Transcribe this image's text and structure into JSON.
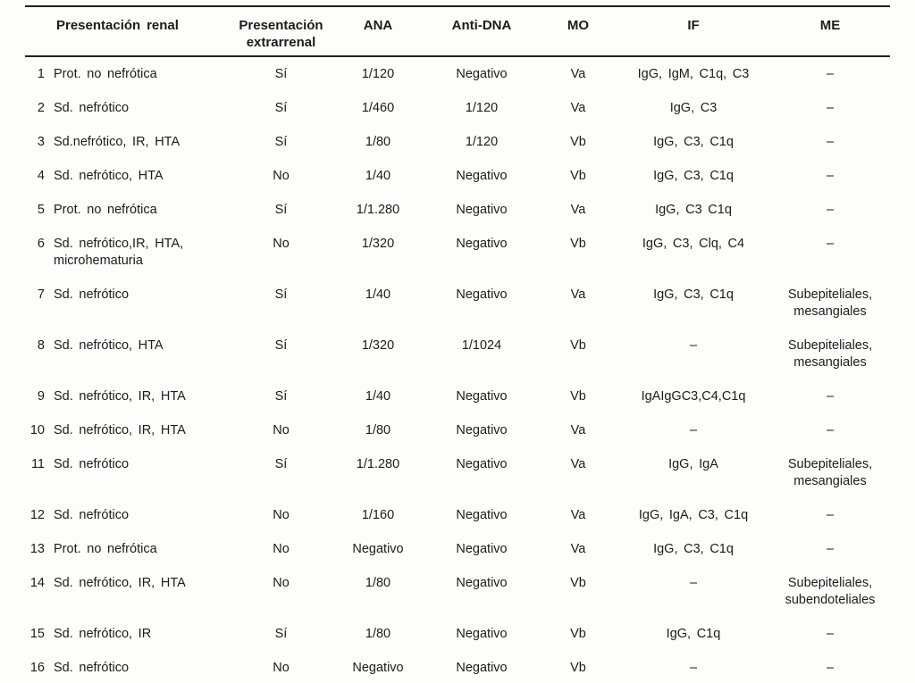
{
  "table": {
    "columns": [
      {
        "key": "num",
        "label": ""
      },
      {
        "key": "renal",
        "label": "Presentación renal"
      },
      {
        "key": "extrarenal",
        "label": "Presentación\nextrarrenal"
      },
      {
        "key": "ana",
        "label": "ANA"
      },
      {
        "key": "antidna",
        "label": "Anti-DNA"
      },
      {
        "key": "mo",
        "label": "MO"
      },
      {
        "key": "if",
        "label": "IF"
      },
      {
        "key": "me",
        "label": "ME"
      }
    ],
    "rows": [
      {
        "num": "1",
        "renal": "Prot. no nefrótica",
        "extrarenal": "Sí",
        "ana": "1/120",
        "antidna": "Negativo",
        "mo": "Va",
        "if": "IgG, IgM, C1q, C3",
        "me": "–"
      },
      {
        "num": "2",
        "renal": "Sd. nefrótico",
        "extrarenal": "Sí",
        "ana": "1/460",
        "antidna": "1/120",
        "mo": "Va",
        "if": "IgG, C3",
        "me": "–"
      },
      {
        "num": "3",
        "renal": "Sd.nefrótico, IR, HTA",
        "extrarenal": "Sí",
        "ana": "1/80",
        "antidna": "1/120",
        "mo": "Vb",
        "if": "IgG, C3, C1q",
        "me": "–"
      },
      {
        "num": "4",
        "renal": "Sd. nefrótico, HTA",
        "extrarenal": "No",
        "ana": "1/40",
        "antidna": "Negativo",
        "mo": "Vb",
        "if": "IgG, C3, C1q",
        "me": "–"
      },
      {
        "num": "5",
        "renal": "Prot. no nefrótica",
        "extrarenal": "Sí",
        "ana": "1/1.280",
        "antidna": "Negativo",
        "mo": "Va",
        "if": "IgG, C3 C1q",
        "me": "–"
      },
      {
        "num": "6",
        "renal": "Sd. nefrótico,IR, HTA,\nmicrohematuria",
        "extrarenal": "No",
        "ana": "1/320",
        "antidna": "Negativo",
        "mo": "Vb",
        "if": "IgG, C3, Clq, C4",
        "me": "–"
      },
      {
        "num": "7",
        "renal": "Sd. nefrótico",
        "extrarenal": "Sí",
        "ana": "1/40",
        "antidna": "Negativo",
        "mo": "Va",
        "if": "IgG, C3, C1q",
        "me": "Subepiteliales,\nmesangiales"
      },
      {
        "num": "8",
        "renal": "Sd. nefrótico, HTA",
        "extrarenal": "Sí",
        "ana": "1/320",
        "antidna": "1/1024",
        "mo": "Vb",
        "if": "–",
        "me": "Subepiteliales,\nmesangiales"
      },
      {
        "num": "9",
        "renal": "Sd. nefrótico, IR, HTA",
        "extrarenal": "Sí",
        "ana": "1/40",
        "antidna": "Negativo",
        "mo": "Vb",
        "if": "IgAIgGC3,C4,C1q",
        "me": "–"
      },
      {
        "num": "10",
        "renal": "Sd. nefrótico, IR, HTA",
        "extrarenal": "No",
        "ana": "1/80",
        "antidna": "Negativo",
        "mo": "Va",
        "if": "–",
        "me": "–"
      },
      {
        "num": "11",
        "renal": "Sd. nefrótico",
        "extrarenal": "Sí",
        "ana": "1/1.280",
        "antidna": "Negativo",
        "mo": "Va",
        "if": "IgG, IgA",
        "me": "Subepiteliales,\nmesangiales"
      },
      {
        "num": "12",
        "renal": "Sd. nefrótico",
        "extrarenal": "No",
        "ana": "1/160",
        "antidna": "Negativo",
        "mo": "Va",
        "if": "IgG, IgA, C3, C1q",
        "me": "–"
      },
      {
        "num": "13",
        "renal": "Prot. no nefrótica",
        "extrarenal": "No",
        "ana": "Negativo",
        "antidna": "Negativo",
        "mo": "Va",
        "if": "IgG, C3, C1q",
        "me": "–"
      },
      {
        "num": "14",
        "renal": "Sd. nefrótico, IR, HTA",
        "extrarenal": "No",
        "ana": "1/80",
        "antidna": "Negativo",
        "mo": "Vb",
        "if": "–",
        "me": "Subepiteliales,\nsubendoteliales"
      },
      {
        "num": "15",
        "renal": "Sd. nefrótico, IR",
        "extrarenal": "Sí",
        "ana": "1/80",
        "antidna": "Negativo",
        "mo": "Vb",
        "if": "IgG, C1q",
        "me": "–"
      },
      {
        "num": "16",
        "renal": "Sd. nefrótico",
        "extrarenal": "No",
        "ana": "Negativo",
        "antidna": "Negativo",
        "mo": "Vb",
        "if": "–",
        "me": "–"
      }
    ]
  }
}
